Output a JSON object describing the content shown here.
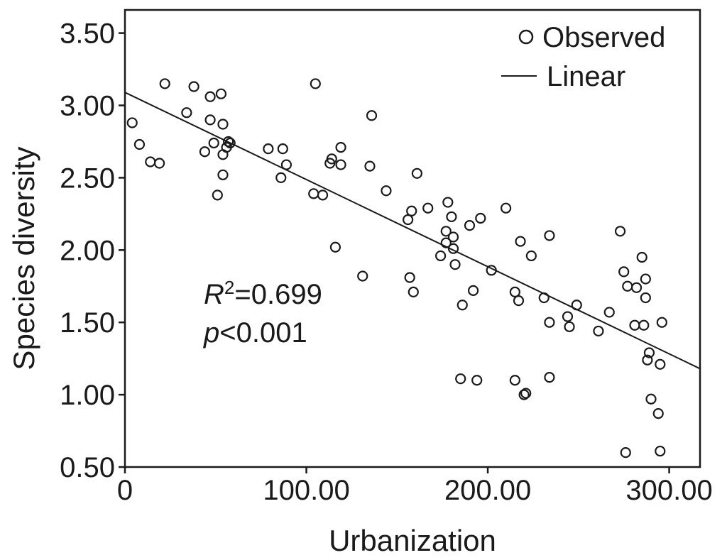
{
  "chart_data": {
    "type": "scatter",
    "xlabel": "Urbanization",
    "ylabel": "Species diversity",
    "xlim": [
      0,
      317
    ],
    "ylim": [
      0.5,
      3.66
    ],
    "x_ticks": [
      0,
      100,
      200,
      300
    ],
    "x_tick_labels": [
      "0",
      "100.00",
      "200.00",
      "300.00"
    ],
    "y_ticks": [
      0.5,
      1.0,
      1.5,
      2.0,
      2.5,
      3.0,
      3.5
    ],
    "y_tick_labels": [
      "0.50",
      "1.00",
      "1.50",
      "2.00",
      "2.50",
      "3.00",
      "3.50"
    ],
    "legend": {
      "position": "top-right",
      "entries": [
        {
          "marker": "circle",
          "label": "Observed"
        },
        {
          "marker": "line",
          "label": "Linear"
        }
      ]
    },
    "annotation": {
      "r_symbol": "R",
      "r_sup": "2",
      "r_value": "=0.699",
      "p_symbol": "p",
      "p_value": "<0.001"
    },
    "fit_line": {
      "x": [
        0,
        317
      ],
      "y": [
        3.09,
        1.18
      ]
    },
    "series": [
      {
        "points": [
          [
            4,
            2.88
          ],
          [
            8,
            2.73
          ],
          [
            14,
            2.61
          ],
          [
            19,
            2.6
          ],
          [
            22,
            3.15
          ],
          [
            34,
            2.95
          ],
          [
            38,
            3.13
          ],
          [
            44,
            2.68
          ],
          [
            47,
            3.06
          ],
          [
            47,
            2.9
          ],
          [
            49,
            2.74
          ],
          [
            51,
            2.38
          ],
          [
            53,
            3.08
          ],
          [
            54,
            2.87
          ],
          [
            54,
            2.66
          ],
          [
            54,
            2.52
          ],
          [
            56,
            2.71
          ],
          [
            57,
            2.75
          ],
          [
            58,
            2.74
          ],
          [
            79,
            2.7
          ],
          [
            86,
            2.5
          ],
          [
            87,
            2.7
          ],
          [
            89,
            2.59
          ],
          [
            104,
            2.39
          ],
          [
            105,
            3.15
          ],
          [
            109,
            2.38
          ],
          [
            113,
            2.6
          ],
          [
            114,
            2.63
          ],
          [
            116,
            2.02
          ],
          [
            119,
            2.59
          ],
          [
            119,
            2.71
          ],
          [
            131,
            1.82
          ],
          [
            135,
            2.58
          ],
          [
            136,
            2.93
          ],
          [
            144,
            2.41
          ],
          [
            156,
            2.21
          ],
          [
            157,
            1.81
          ],
          [
            158,
            2.27
          ],
          [
            159,
            1.71
          ],
          [
            161,
            2.53
          ],
          [
            167,
            2.29
          ],
          [
            174,
            1.96
          ],
          [
            177,
            2.05
          ],
          [
            177,
            2.13
          ],
          [
            178,
            2.33
          ],
          [
            180,
            2.23
          ],
          [
            181,
            2.09
          ],
          [
            181,
            2.01
          ],
          [
            182,
            1.9
          ],
          [
            185,
            1.11
          ],
          [
            186,
            1.62
          ],
          [
            190,
            2.17
          ],
          [
            192,
            1.72
          ],
          [
            194,
            1.1
          ],
          [
            196,
            2.22
          ],
          [
            202,
            1.86
          ],
          [
            210,
            2.29
          ],
          [
            215,
            1.71
          ],
          [
            215,
            1.1
          ],
          [
            217,
            1.65
          ],
          [
            218,
            2.06
          ],
          [
            220,
            1.0
          ],
          [
            221,
            1.01
          ],
          [
            224,
            1.96
          ],
          [
            231,
            1.67
          ],
          [
            234,
            1.5
          ],
          [
            234,
            1.12
          ],
          [
            234,
            2.1
          ],
          [
            244,
            1.54
          ],
          [
            245,
            1.47
          ],
          [
            249,
            1.62
          ],
          [
            261,
            1.44
          ],
          [
            267,
            1.57
          ],
          [
            273,
            2.13
          ],
          [
            275,
            1.85
          ],
          [
            276,
            0.6
          ],
          [
            277,
            1.75
          ],
          [
            281,
            1.48
          ],
          [
            282,
            1.74
          ],
          [
            285,
            1.95
          ],
          [
            286,
            1.48
          ],
          [
            287,
            1.8
          ],
          [
            287,
            1.67
          ],
          [
            288,
            1.24
          ],
          [
            289,
            1.29
          ],
          [
            290,
            0.97
          ],
          [
            294,
            0.87
          ],
          [
            295,
            1.21
          ],
          [
            295,
            0.61
          ],
          [
            296,
            1.5
          ]
        ]
      }
    ]
  }
}
